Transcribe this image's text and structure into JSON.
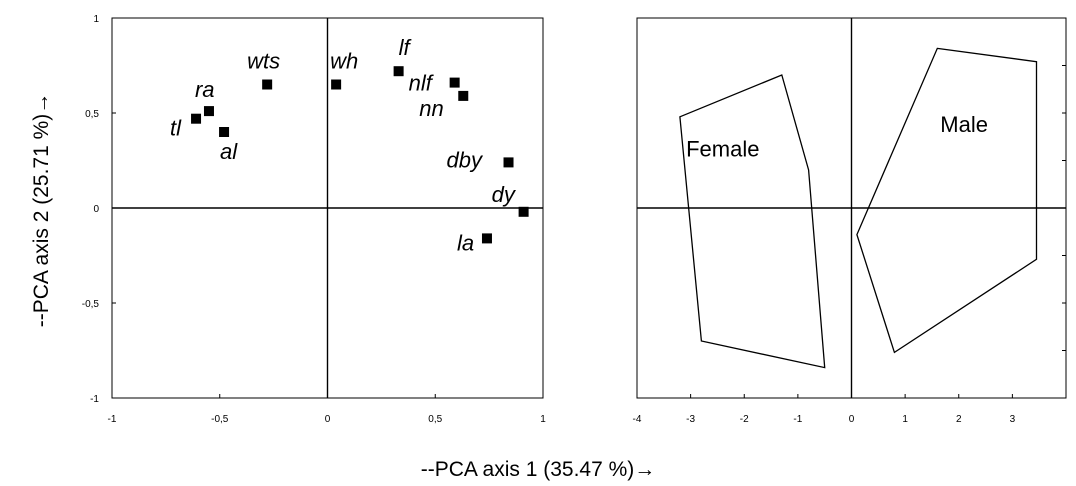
{
  "x_axis_title": "--PCA axis 1 (35.47 %)→",
  "y_axis_title": "--PCA axis 2 (25.71 %)→",
  "chart_data": [
    {
      "type": "scatter",
      "xlim": [
        -1,
        1
      ],
      "ylim": [
        -1,
        1
      ],
      "x_ticks": [
        "-1",
        "-0,5",
        "0",
        "0,5",
        "1"
      ],
      "y_ticks": [
        "1",
        "0,5",
        "0",
        "-0,5",
        "-1"
      ],
      "grid": false,
      "points": [
        {
          "label": "tl",
          "x": -0.61,
          "y": 0.47
        },
        {
          "label": "ra",
          "x": -0.55,
          "y": 0.51
        },
        {
          "label": "al",
          "x": -0.48,
          "y": 0.4
        },
        {
          "label": "wts",
          "x": -0.28,
          "y": 0.65
        },
        {
          "label": "wh",
          "x": 0.04,
          "y": 0.65
        },
        {
          "label": "lf",
          "x": 0.33,
          "y": 0.72
        },
        {
          "label": "nlf",
          "x": 0.59,
          "y": 0.66
        },
        {
          "label": "nn",
          "x": 0.63,
          "y": 0.59
        },
        {
          "label": "dby",
          "x": 0.84,
          "y": 0.24
        },
        {
          "label": "dy",
          "x": 0.91,
          "y": -0.02
        },
        {
          "label": "la",
          "x": 0.74,
          "y": -0.16
        }
      ]
    },
    {
      "type": "polygon",
      "xlim": [
        -4,
        4
      ],
      "ylim": [
        -1,
        1
      ],
      "x_ticks": [
        "-4",
        "-3",
        "-2",
        "-1",
        "0",
        "1",
        "2",
        "3"
      ],
      "grid": false,
      "groups": [
        {
          "name": "Female",
          "vertices": [
            [
              -3.2,
              0.48
            ],
            [
              -1.3,
              0.7
            ],
            [
              -0.8,
              0.2
            ],
            [
              -0.5,
              -0.84
            ],
            [
              -2.8,
              -0.7
            ]
          ]
        },
        {
          "name": "Male",
          "vertices": [
            [
              1.6,
              0.84
            ],
            [
              3.45,
              0.77
            ],
            [
              3.45,
              -0.27
            ],
            [
              0.8,
              -0.76
            ],
            [
              0.1,
              -0.14
            ]
          ]
        }
      ]
    }
  ]
}
